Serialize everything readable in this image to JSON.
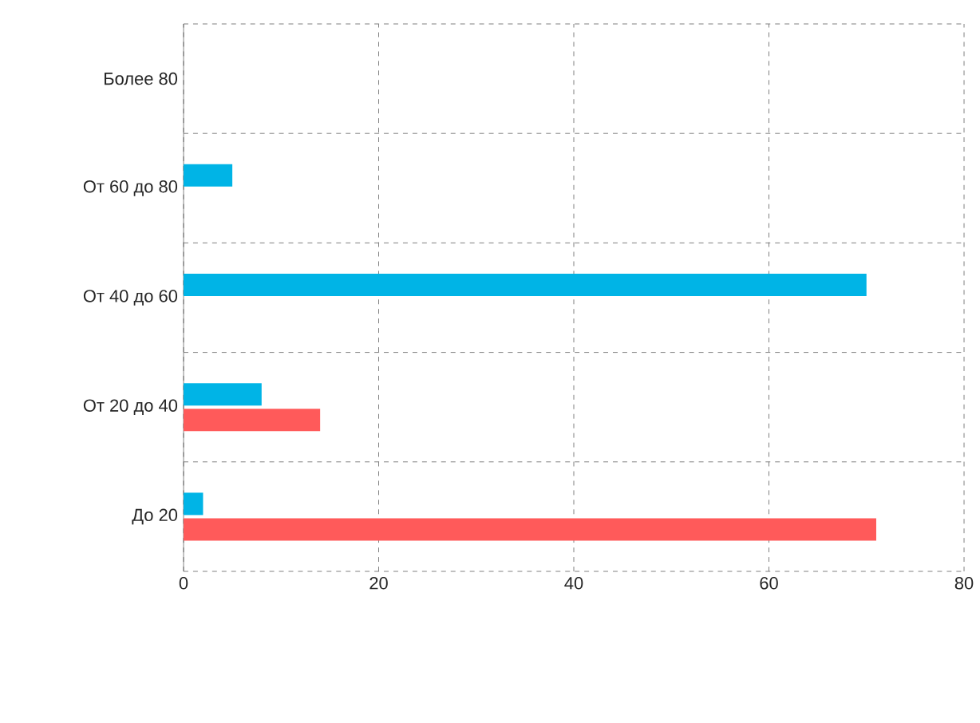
{
  "chart_data": {
    "type": "bar",
    "orientation": "horizontal",
    "categories": [
      "Более 80",
      "От 60 до 80",
      "От 40 до 60",
      "От 20 до 40",
      "До 20"
    ],
    "series": [
      {
        "color": "#ff5a5a",
        "values": [
          0,
          0,
          0,
          14,
          71
        ]
      },
      {
        "color": "#00b4e6",
        "values": [
          0,
          5,
          70,
          8,
          2
        ]
      }
    ],
    "xlim": [
      0,
      80
    ],
    "xticks": [
      0,
      20,
      40,
      60,
      80
    ],
    "grid": true
  }
}
